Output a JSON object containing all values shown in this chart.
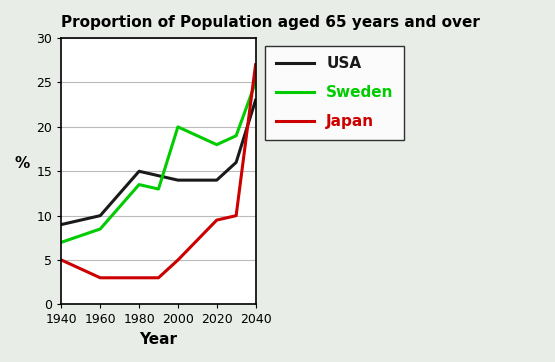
{
  "title": "Proportion of Population aged 65 years and over",
  "xlabel": "Year",
  "ylabel": "%",
  "xlim": [
    1940,
    2040
  ],
  "ylim": [
    0,
    30
  ],
  "xticks": [
    1940,
    1960,
    1980,
    2000,
    2020,
    2040
  ],
  "yticks": [
    0,
    5,
    10,
    15,
    20,
    25,
    30
  ],
  "background_color": "#e8ede8",
  "plot_bg": "#ffffff",
  "usa": {
    "x": [
      1940,
      1960,
      1980,
      1990,
      2000,
      2020,
      2030,
      2040
    ],
    "y": [
      9,
      10,
      15,
      14.5,
      14,
      14,
      16,
      23
    ],
    "color": "#1a1a1a",
    "label": "USA",
    "linewidth": 2.2
  },
  "sweden": {
    "x": [
      1940,
      1960,
      1980,
      1990,
      2000,
      2020,
      2030,
      2040
    ],
    "y": [
      7,
      8.5,
      13.5,
      13,
      20,
      18,
      19,
      25
    ],
    "color": "#00cc00",
    "label": "Sweden",
    "linewidth": 2.2
  },
  "japan": {
    "x": [
      1940,
      1960,
      1980,
      1990,
      2000,
      2020,
      2030,
      2040
    ],
    "y": [
      5,
      3,
      3,
      3,
      5,
      9.5,
      10,
      27
    ],
    "color": "#cc0000",
    "label": "Japan",
    "linewidth": 2.2
  },
  "legend_text_colors": {
    "USA": "#1a1a1a",
    "Sweden": "#00cc00",
    "Japan": "#cc0000"
  },
  "legend_fontsize": 11
}
